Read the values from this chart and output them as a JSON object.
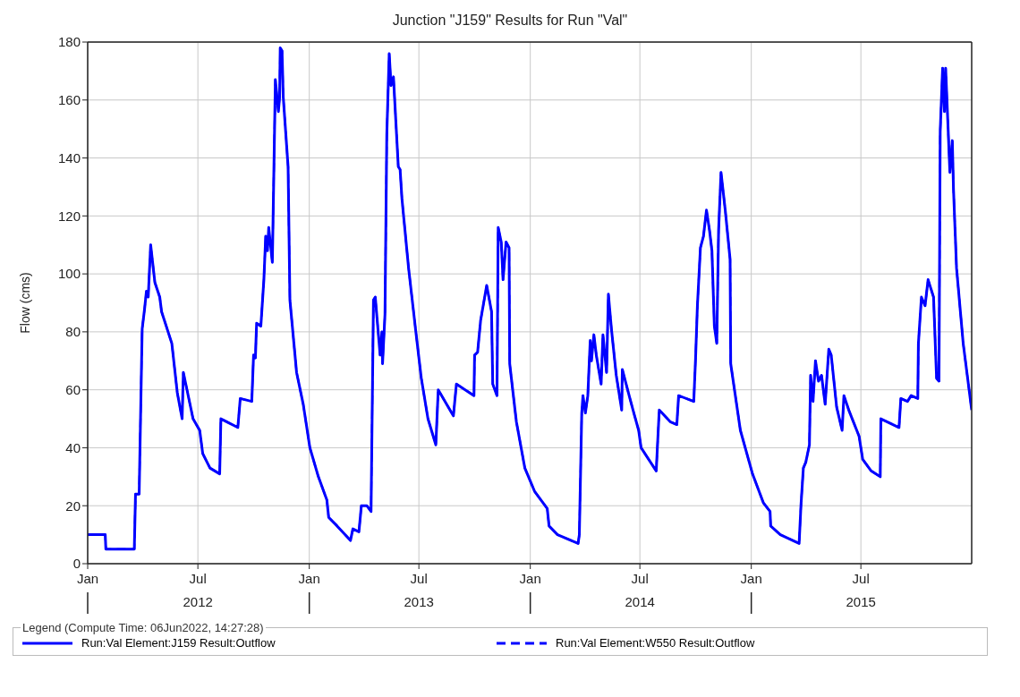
{
  "chart_data": {
    "type": "line",
    "title": "Junction \"J159\" Results for Run \"Val\"",
    "ylabel": "Flow (cms)",
    "legend_title": "Legend (Compute Time: 06Jun2022, 14:27:28)",
    "x": [
      "2012-01-01",
      "2012-01-30",
      "2012-01-31",
      "2012-03-18",
      "2012-03-20",
      "2012-03-26",
      "2012-03-31",
      "2012-04-04",
      "2012-04-07",
      "2012-04-10",
      "2012-04-14",
      "2012-04-21",
      "2012-04-29",
      "2012-05-02",
      "2012-05-19",
      "2012-05-28",
      "2012-06-05",
      "2012-06-07",
      "2012-06-23",
      "2012-07-04",
      "2012-07-09",
      "2012-07-21",
      "2012-08-06",
      "2012-08-08",
      "2012-09-05",
      "2012-09-09",
      "2012-09-28",
      "2012-10-01",
      "2012-10-04",
      "2012-10-06",
      "2012-10-13",
      "2012-10-18",
      "2012-10-21",
      "2012-10-24",
      "2012-10-26",
      "2012-11-01",
      "2012-11-06",
      "2012-11-11",
      "2012-11-13",
      "2012-11-14",
      "2012-11-17",
      "2012-11-19",
      "2012-11-27",
      "2012-11-30",
      "2012-12-11",
      "2012-12-22",
      "2013-01-02",
      "2013-01-16",
      "2013-01-30",
      "2013-02-02",
      "2013-02-16",
      "2013-03-10",
      "2013-03-14",
      "2013-03-24",
      "2013-03-28",
      "2013-04-06",
      "2013-04-13",
      "2013-04-17",
      "2013-04-20",
      "2013-04-28",
      "2013-05-01",
      "2013-05-02",
      "2013-05-06",
      "2013-05-09",
      "2013-05-13",
      "2013-05-16",
      "2013-05-20",
      "2013-05-28",
      "2013-05-31",
      "2013-06-03",
      "2013-06-14",
      "2013-06-26",
      "2013-07-05",
      "2013-07-16",
      "2013-07-29",
      "2013-08-02",
      "2013-08-27",
      "2013-09-01",
      "2013-09-30",
      "2013-10-01",
      "2013-10-06",
      "2013-10-11",
      "2013-10-21",
      "2013-10-29",
      "2013-10-31",
      "2013-11-07",
      "2013-11-09",
      "2013-11-14",
      "2013-11-17",
      "2013-11-22",
      "2013-11-27",
      "2013-11-28",
      "2013-12-09",
      "2013-12-23",
      "2014-01-08",
      "2014-01-29",
      "2014-02-01",
      "2014-02-15",
      "2014-03-21",
      "2014-03-23",
      "2014-03-27",
      "2014-03-29",
      "2014-04-02",
      "2014-04-06",
      "2014-04-10",
      "2014-04-12",
      "2014-04-16",
      "2014-04-20",
      "2014-04-28",
      "2014-05-01",
      "2014-05-07",
      "2014-05-10",
      "2014-05-15",
      "2014-05-23",
      "2014-06-01",
      "2014-06-02",
      "2014-06-12",
      "2014-06-21",
      "2014-06-29",
      "2014-07-03",
      "2014-07-28",
      "2014-08-02",
      "2014-08-20",
      "2014-08-31",
      "2014-09-03",
      "2014-09-28",
      "2014-10-01",
      "2014-10-04",
      "2014-10-09",
      "2014-10-14",
      "2014-10-19",
      "2014-10-24",
      "2014-10-28",
      "2014-11-01",
      "2014-11-05",
      "2014-11-08",
      "2014-11-12",
      "2014-11-19",
      "2014-11-27",
      "2014-11-28",
      "2014-12-14",
      "2015-01-03",
      "2015-01-21",
      "2015-02-01",
      "2015-02-02",
      "2015-02-18",
      "2015-03-21",
      "2015-03-24",
      "2015-03-28",
      "2015-04-01",
      "2015-04-07",
      "2015-04-09",
      "2015-04-13",
      "2015-04-17",
      "2015-04-22",
      "2015-04-27",
      "2015-05-03",
      "2015-05-09",
      "2015-05-13",
      "2015-05-22",
      "2015-05-31",
      "2015-06-03",
      "2015-06-11",
      "2015-06-28",
      "2015-07-04",
      "2015-07-18",
      "2015-08-02",
      "2015-08-03",
      "2015-09-02",
      "2015-09-05",
      "2015-09-16",
      "2015-09-22",
      "2015-10-03",
      "2015-10-04",
      "2015-10-09",
      "2015-10-15",
      "2015-10-20",
      "2015-10-29",
      "2015-11-03",
      "2015-11-07",
      "2015-11-09",
      "2015-11-13",
      "2015-11-16",
      "2015-11-18",
      "2015-11-25",
      "2015-11-29",
      "2015-12-01",
      "2015-12-06",
      "2015-12-17",
      "2015-12-31"
    ],
    "series": [
      {
        "name": "Run:Val Element:J159 Result:Outflow",
        "color": "#0000ff",
        "line_style": "solid",
        "values": [
          10,
          10,
          5,
          5,
          24,
          24,
          81,
          88,
          94,
          92,
          110,
          97,
          92,
          87,
          76,
          59,
          50,
          66,
          50,
          46,
          38,
          33,
          31,
          50,
          47,
          57,
          56,
          72,
          71,
          83,
          82,
          98,
          113,
          108,
          116,
          104,
          167,
          156,
          161,
          178,
          177,
          161,
          137,
          91,
          66,
          55,
          40,
          30,
          22,
          16,
          13,
          8,
          12,
          11,
          20,
          20,
          18,
          91,
          92,
          72,
          80,
          69,
          86,
          148,
          176,
          165,
          168,
          137,
          136,
          126,
          102,
          80,
          64,
          50,
          41,
          60,
          51,
          62,
          58,
          72,
          73,
          84,
          96,
          87,
          62,
          58,
          116,
          111,
          98,
          111,
          109,
          69,
          49,
          33,
          25,
          19,
          13,
          10,
          7,
          10,
          52,
          58,
          52,
          58,
          77,
          70,
          79,
          72,
          62,
          79,
          66,
          93,
          81,
          65,
          53,
          67,
          59,
          52,
          46,
          40,
          32,
          53,
          49,
          48,
          58,
          56,
          71,
          89,
          109,
          113,
          122,
          115,
          108,
          82,
          76,
          115,
          135,
          122,
          105,
          69,
          46,
          31,
          21,
          18,
          13,
          10,
          7,
          20,
          33,
          35,
          41,
          65,
          56,
          70,
          63,
          65,
          55,
          74,
          72,
          54,
          46,
          58,
          53,
          44,
          36,
          32,
          30,
          50,
          47,
          57,
          56,
          58,
          57,
          76,
          92,
          89,
          98,
          92,
          64,
          63,
          149,
          171,
          156,
          171,
          135,
          146,
          129,
          102,
          76,
          53
        ]
      },
      {
        "name": "Run:Val Element:W550 Result:Outflow",
        "color": "#0000ff",
        "line_style": "dashed",
        "values": [
          10,
          10,
          5,
          5,
          24,
          24,
          81,
          88,
          94,
          92,
          110,
          97,
          92,
          87,
          76,
          59,
          50,
          66,
          50,
          46,
          38,
          33,
          31,
          50,
          47,
          57,
          56,
          72,
          71,
          83,
          82,
          98,
          113,
          108,
          116,
          104,
          167,
          156,
          161,
          178,
          177,
          161,
          137,
          91,
          66,
          55,
          40,
          30,
          22,
          16,
          13,
          8,
          12,
          11,
          20,
          20,
          18,
          91,
          92,
          72,
          80,
          69,
          86,
          148,
          176,
          165,
          168,
          137,
          136,
          126,
          102,
          80,
          64,
          50,
          41,
          60,
          51,
          62,
          58,
          72,
          73,
          84,
          96,
          87,
          62,
          58,
          116,
          111,
          98,
          111,
          109,
          69,
          49,
          33,
          25,
          19,
          13,
          10,
          7,
          10,
          52,
          58,
          52,
          58,
          77,
          70,
          79,
          72,
          62,
          79,
          66,
          93,
          81,
          65,
          53,
          67,
          59,
          52,
          46,
          40,
          32,
          53,
          49,
          48,
          58,
          56,
          71,
          89,
          109,
          113,
          122,
          115,
          108,
          82,
          76,
          115,
          135,
          122,
          105,
          69,
          46,
          31,
          21,
          18,
          13,
          10,
          7,
          20,
          33,
          35,
          41,
          65,
          56,
          70,
          63,
          65,
          55,
          74,
          72,
          54,
          46,
          58,
          53,
          44,
          36,
          32,
          30,
          50,
          47,
          57,
          56,
          58,
          57,
          76,
          92,
          89,
          98,
          92,
          64,
          63,
          149,
          171,
          156,
          171,
          135,
          146,
          129,
          102,
          76,
          53
        ]
      }
    ],
    "xlim": [
      "2012-01-01",
      "2015-12-31"
    ],
    "xticks": [
      {
        "value": "2012-01-01",
        "label": "Jan"
      },
      {
        "value": "2012-07-01",
        "label": "Jul\n2012"
      },
      {
        "value": "2013-01-01",
        "label": "Jan"
      },
      {
        "value": "2013-07-01",
        "label": "Jul\n2013"
      },
      {
        "value": "2014-01-01",
        "label": "Jan"
      },
      {
        "value": "2014-07-01",
        "label": "Jul\n2014"
      },
      {
        "value": "2015-01-01",
        "label": "Jan"
      },
      {
        "value": "2015-07-01",
        "label": "Jul\n2015"
      }
    ],
    "ylim": [
      0,
      180
    ],
    "yticks": [
      0,
      20,
      40,
      60,
      80,
      100,
      120,
      140,
      160,
      180
    ],
    "grid": true,
    "legend": "bottom",
    "marker": "none"
  }
}
